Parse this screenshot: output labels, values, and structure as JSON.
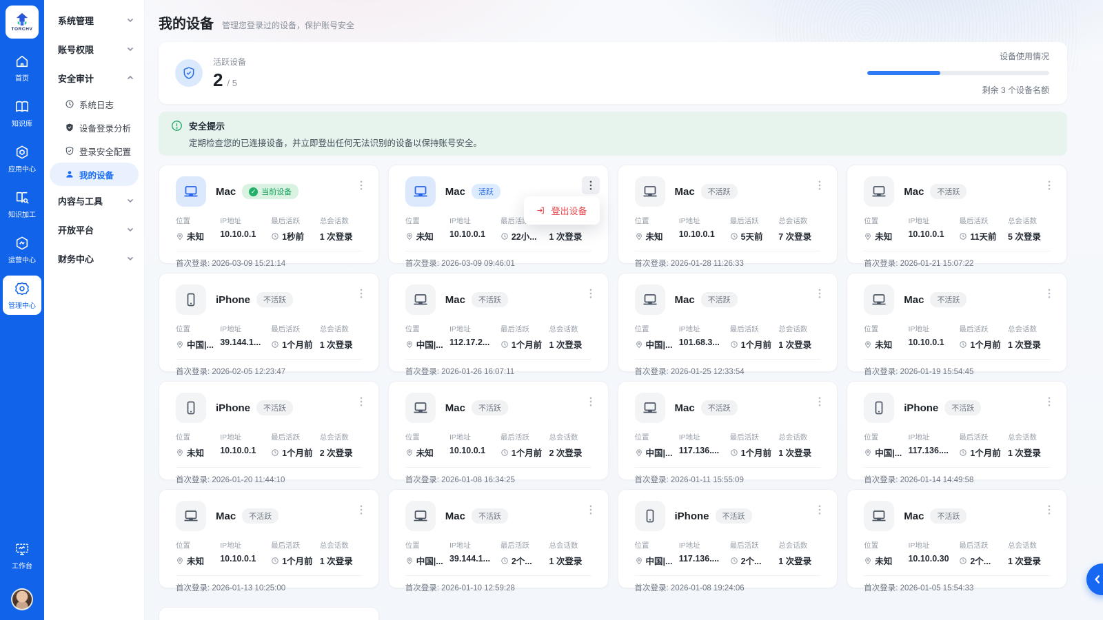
{
  "brand": {
    "name": "TORCHV"
  },
  "rail": {
    "items": [
      {
        "label": "首页",
        "icon": "home-icon"
      },
      {
        "label": "知识库",
        "icon": "book-icon"
      },
      {
        "label": "应用中心",
        "icon": "app-hexagon-icon"
      },
      {
        "label": "知识加工",
        "icon": "book-search-icon"
      },
      {
        "label": "运营中心",
        "icon": "operations-hexagon-icon",
        "active": false
      },
      {
        "label": "管理中心",
        "icon": "gear-icon",
        "active": true
      }
    ],
    "workbench_label": "工作台"
  },
  "sidebar": {
    "groups": [
      {
        "label": "系统管理",
        "expanded": false
      },
      {
        "label": "账号权限",
        "expanded": false
      },
      {
        "label": "安全审计",
        "expanded": true,
        "children": [
          {
            "label": "系统日志",
            "icon": "clock-icon"
          },
          {
            "label": "设备登录分析",
            "icon": "shield-icon"
          },
          {
            "label": "登录安全配置",
            "icon": "shield-check-icon"
          },
          {
            "label": "我的设备",
            "icon": "user-icon",
            "active": true
          }
        ]
      },
      {
        "label": "内容与工具",
        "expanded": false
      },
      {
        "label": "开放平台",
        "expanded": false
      },
      {
        "label": "财务中心",
        "expanded": false
      }
    ]
  },
  "header": {
    "title": "我的设备",
    "subtitle": "管理您登录过的设备，保护账号安全"
  },
  "stats": {
    "label": "活跃设备",
    "active_count": "2",
    "denominator": "/ 5",
    "usage_label": "设备使用情况",
    "usage_percent": 40,
    "remaining_label": "剩余 3 个设备名额"
  },
  "security_tip": {
    "title": "安全提示",
    "description": "定期检查您的已连接设备，并立即登出任何无法识别的设备以保持账号安全。"
  },
  "labels": {
    "location": "位置",
    "ip": "IP地址",
    "last_active": "最后活跃",
    "sessions": "总会话数",
    "first_login_prefix": "首次登录:"
  },
  "menu": {
    "logout_label": "登出设备"
  },
  "colors": {
    "accent_blue": "#1164ea",
    "badge_green": "#16a35a",
    "danger_red": "#e5484d",
    "tip_green": "#22a864"
  },
  "devices": [
    {
      "name": "Mac",
      "type": "laptop",
      "tile": "blue",
      "badge": "当前设备",
      "badge_type": "current",
      "location": "未知",
      "ip": "10.10.0.1",
      "last_active": "1秒前",
      "sessions": "1 次登录",
      "first_login": "2026-03-09 15:21:14",
      "menu_open": false
    },
    {
      "name": "Mac",
      "type": "laptop",
      "tile": "blue",
      "badge": "活跃",
      "badge_type": "active",
      "location": "未知",
      "ip": "10.10.0.1",
      "last_active": "22小...",
      "sessions": "1 次登录",
      "first_login": "2026-03-09 09:46:01",
      "menu_open": true
    },
    {
      "name": "Mac",
      "type": "laptop",
      "tile": "gray",
      "badge": "不活跃",
      "badge_type": "inactive",
      "location": "未知",
      "ip": "10.10.0.1",
      "last_active": "5天前",
      "sessions": "7 次登录",
      "first_login": "2026-01-28 11:26:33",
      "menu_open": false
    },
    {
      "name": "Mac",
      "type": "laptop",
      "tile": "gray",
      "badge": "不活跃",
      "badge_type": "inactive",
      "location": "未知",
      "ip": "10.10.0.1",
      "last_active": "11天前",
      "sessions": "5 次登录",
      "first_login": "2026-01-21 15:07:22",
      "menu_open": false
    },
    {
      "name": "iPhone",
      "type": "phone",
      "tile": "gray",
      "badge": "不活跃",
      "badge_type": "inactive",
      "location": "中国|...",
      "ip": "39.144.1...",
      "last_active": "1个月前",
      "sessions": "1 次登录",
      "first_login": "2026-02-05 12:23:47",
      "menu_open": false
    },
    {
      "name": "Mac",
      "type": "laptop",
      "tile": "gray",
      "badge": "不活跃",
      "badge_type": "inactive",
      "location": "中国|...",
      "ip": "112.17.2...",
      "last_active": "1个月前",
      "sessions": "1 次登录",
      "first_login": "2026-01-26 16:07:11",
      "menu_open": false
    },
    {
      "name": "Mac",
      "type": "laptop",
      "tile": "gray",
      "badge": "不活跃",
      "badge_type": "inactive",
      "location": "中国|...",
      "ip": "101.68.3...",
      "last_active": "1个月前",
      "sessions": "1 次登录",
      "first_login": "2026-01-25 12:33:54",
      "menu_open": false
    },
    {
      "name": "Mac",
      "type": "laptop",
      "tile": "gray",
      "badge": "不活跃",
      "badge_type": "inactive",
      "location": "未知",
      "ip": "10.10.0.1",
      "last_active": "1个月前",
      "sessions": "1 次登录",
      "first_login": "2026-01-19 15:54:45",
      "menu_open": false
    },
    {
      "name": "iPhone",
      "type": "phone",
      "tile": "gray",
      "badge": "不活跃",
      "badge_type": "inactive",
      "location": "未知",
      "ip": "10.10.0.1",
      "last_active": "1个月前",
      "sessions": "2 次登录",
      "first_login": "2026-01-20 11:44:10",
      "menu_open": false
    },
    {
      "name": "Mac",
      "type": "laptop",
      "tile": "gray",
      "badge": "不活跃",
      "badge_type": "inactive",
      "location": "未知",
      "ip": "10.10.0.1",
      "last_active": "1个月前",
      "sessions": "2 次登录",
      "first_login": "2026-01-08 16:34:25",
      "menu_open": false
    },
    {
      "name": "Mac",
      "type": "laptop",
      "tile": "gray",
      "badge": "不活跃",
      "badge_type": "inactive",
      "location": "中国|...",
      "ip": "117.136....",
      "last_active": "1个月前",
      "sessions": "1 次登录",
      "first_login": "2026-01-11 15:55:09",
      "menu_open": false
    },
    {
      "name": "iPhone",
      "type": "phone",
      "tile": "gray",
      "badge": "不活跃",
      "badge_type": "inactive",
      "location": "中国|...",
      "ip": "117.136....",
      "last_active": "1个月前",
      "sessions": "1 次登录",
      "first_login": "2026-01-14 14:49:58",
      "menu_open": false
    },
    {
      "name": "Mac",
      "type": "laptop",
      "tile": "gray",
      "badge": "不活跃",
      "badge_type": "inactive",
      "location": "未知",
      "ip": "10.10.0.1",
      "last_active": "1个月前",
      "sessions": "1 次登录",
      "first_login": "2026-01-13 10:25:00",
      "menu_open": false
    },
    {
      "name": "Mac",
      "type": "laptop",
      "tile": "gray",
      "badge": "不活跃",
      "badge_type": "inactive",
      "location": "中国|...",
      "ip": "39.144.1...",
      "last_active": "2个...",
      "sessions": "1 次登录",
      "first_login": "2026-01-10 12:59:28",
      "menu_open": false
    },
    {
      "name": "iPhone",
      "type": "phone",
      "tile": "gray",
      "badge": "不活跃",
      "badge_type": "inactive",
      "location": "中国|...",
      "ip": "117.136....",
      "last_active": "2个...",
      "sessions": "1 次登录",
      "first_login": "2026-01-08 19:24:06",
      "menu_open": false
    },
    {
      "name": "Mac",
      "type": "laptop",
      "tile": "gray",
      "badge": "不活跃",
      "badge_type": "inactive",
      "location": "未知",
      "ip": "10.10.0.30",
      "last_active": "2个...",
      "sessions": "1 次登录",
      "first_login": "2026-01-05 15:54:33",
      "menu_open": false
    }
  ]
}
